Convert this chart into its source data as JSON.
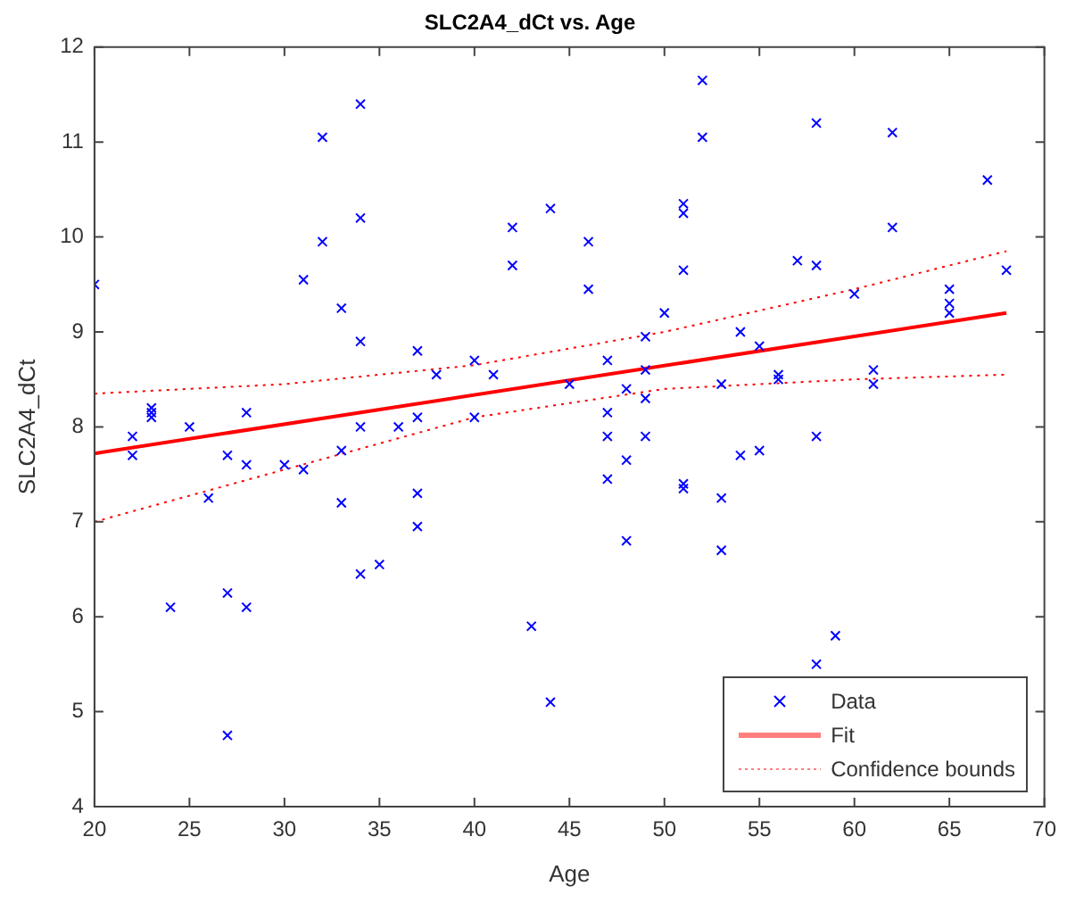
{
  "chart_data": {
    "type": "scatter",
    "title": "SLC2A4_dCt vs. Age",
    "xlabel": "Age",
    "ylabel": "SLC2A4_dCt",
    "xlim": [
      20,
      70
    ],
    "xticks": [
      20,
      25,
      30,
      35,
      40,
      45,
      50,
      55,
      60,
      65,
      70
    ],
    "ylim": [
      4,
      12
    ],
    "yticks": [
      4,
      5,
      6,
      7,
      8,
      9,
      10,
      11,
      12
    ],
    "grid": false,
    "legend": "bottom right",
    "series": [
      {
        "name": "Data",
        "type": "scatter",
        "marker": "cross",
        "color": "#0000ff",
        "x": [
          20,
          22,
          22,
          23,
          23,
          23,
          24,
          25,
          26,
          27,
          27,
          27,
          28,
          28,
          28,
          30,
          31,
          31,
          32,
          32,
          33,
          33,
          33,
          34,
          34,
          34,
          34,
          34,
          35,
          36,
          37,
          37,
          37,
          37,
          38,
          40,
          40,
          41,
          42,
          42,
          43,
          44,
          44,
          45,
          46,
          46,
          47,
          47,
          47,
          47,
          48,
          48,
          48,
          49,
          49,
          49,
          49,
          50,
          51,
          51,
          51,
          51,
          51,
          52,
          52,
          53,
          53,
          53,
          54,
          54,
          55,
          55,
          56,
          56,
          57,
          58,
          58,
          58,
          58,
          59,
          60,
          61,
          61,
          62,
          62,
          65,
          65,
          65,
          67,
          68
        ],
        "values": [
          9.5,
          7.9,
          7.7,
          8.2,
          8.15,
          8.1,
          6.1,
          8.0,
          7.25,
          7.7,
          6.25,
          4.75,
          8.15,
          7.6,
          6.1,
          7.6,
          9.55,
          7.55,
          11.05,
          9.95,
          9.25,
          7.75,
          7.2,
          11.4,
          10.2,
          8.9,
          8.0,
          6.45,
          6.55,
          8.0,
          8.8,
          8.1,
          7.3,
          6.95,
          8.55,
          8.7,
          8.1,
          8.55,
          10.1,
          9.7,
          5.9,
          10.3,
          5.1,
          8.45,
          9.95,
          9.45,
          8.7,
          8.15,
          7.9,
          7.45,
          7.65,
          6.8,
          8.4,
          8.95,
          8.6,
          8.3,
          7.9,
          9.2,
          10.35,
          10.25,
          9.65,
          7.4,
          7.35,
          11.65,
          11.05,
          8.45,
          7.25,
          6.7,
          9.0,
          7.7,
          8.85,
          7.75,
          8.5,
          8.55,
          9.75,
          11.2,
          9.7,
          7.9,
          5.5,
          5.8,
          9.4,
          8.6,
          8.45,
          11.1,
          10.1,
          9.45,
          9.3,
          9.2,
          10.6,
          9.65
        ]
      },
      {
        "name": "Fit",
        "type": "line",
        "marker": "none",
        "line_style": "solid",
        "color": "#ff0000",
        "x": [
          20,
          68
        ],
        "values": [
          7.72,
          9.2
        ]
      },
      {
        "name": "Confidence bounds",
        "type": "line",
        "marker": "none",
        "line_style": "dotted",
        "color": "#ff0000",
        "x": [
          20,
          30,
          40,
          50,
          60,
          68
        ],
        "values": [
          8.35,
          8.45,
          8.65,
          9.0,
          9.45,
          9.85
        ]
      },
      {
        "type": "line",
        "marker": "none",
        "line_style": "dotted",
        "color": "#ff0000",
        "x": [
          20,
          30,
          40,
          50,
          60,
          68
        ],
        "values": [
          7.0,
          7.55,
          8.1,
          8.4,
          8.5,
          8.55
        ]
      }
    ]
  }
}
